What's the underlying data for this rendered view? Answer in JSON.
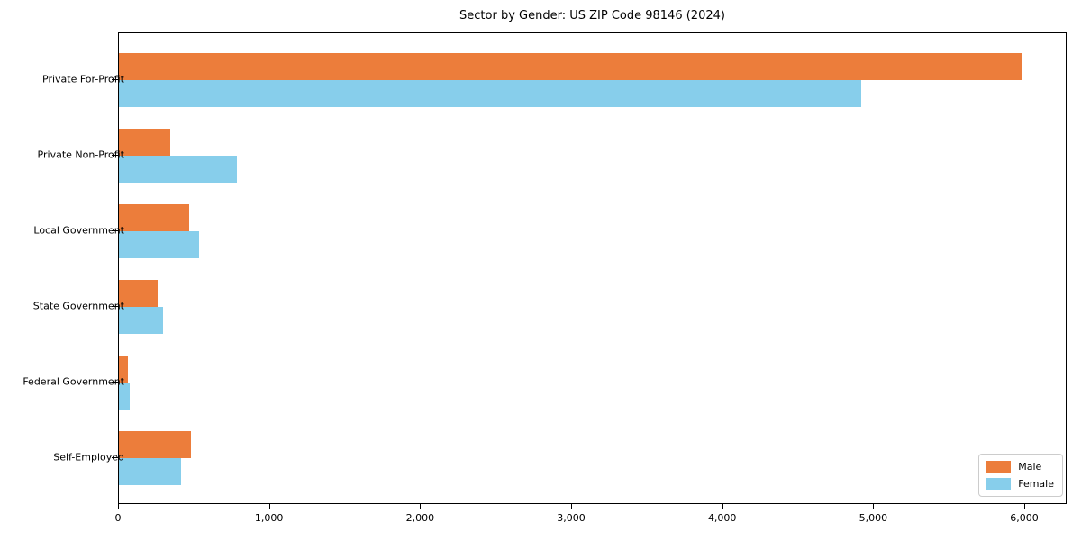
{
  "title": "Sector by Gender: US ZIP Code 98146 (2024)",
  "colors": {
    "male": "#EC7D3B",
    "female": "#87CEEB",
    "axis": "#000000",
    "legend_border": "#cccccc",
    "background": "#ffffff"
  },
  "chart_data": {
    "type": "bar",
    "orientation": "horizontal",
    "title": "Sector by Gender: US ZIP Code 98146 (2024)",
    "xlabel": "",
    "ylabel": "",
    "categories": [
      "Private For-Profit",
      "Private Non-Profit",
      "Local Government",
      "State Government",
      "Federal Government",
      "Self-Employed"
    ],
    "series": [
      {
        "name": "Male",
        "color": "#EC7D3B",
        "values": [
          5990,
          340,
          465,
          255,
          60,
          480
        ]
      },
      {
        "name": "Female",
        "color": "#87CEEB",
        "values": [
          4925,
          785,
          530,
          290,
          70,
          415
        ]
      }
    ],
    "xlim": [
      0,
      6280
    ],
    "xticks": [
      0,
      1000,
      2000,
      3000,
      4000,
      5000,
      6000
    ],
    "xtick_labels": [
      "0",
      "1,000",
      "2,000",
      "3,000",
      "4,000",
      "5,000",
      "6,000"
    ],
    "grid": false,
    "legend_position": "lower right"
  },
  "legend": {
    "items": [
      {
        "label": "Male",
        "color": "#EC7D3B"
      },
      {
        "label": "Female",
        "color": "#87CEEB"
      }
    ]
  }
}
